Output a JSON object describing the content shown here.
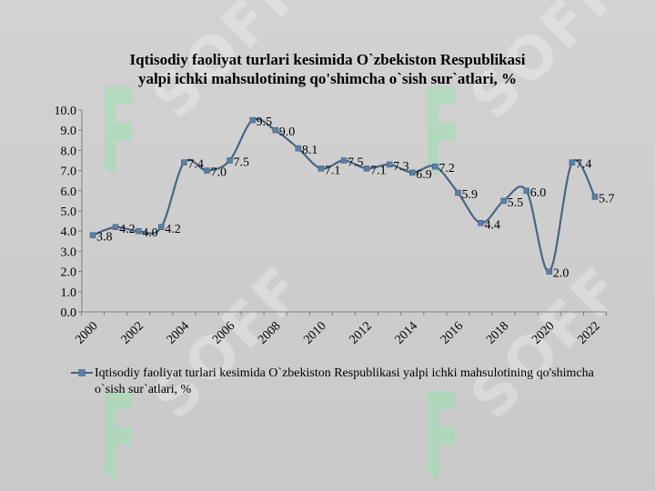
{
  "chart_data": {
    "type": "line",
    "title_line1": "Iqtisodiy faoliyat turlari kesimida O`zbekiston Respublikasi",
    "title_line2": "yalpi ichki mahsulotining qo'shimcha o`sish sur`atlari, %",
    "x": [
      2000,
      2001,
      2002,
      2003,
      2004,
      2005,
      2006,
      2007,
      2008,
      2009,
      2010,
      2011,
      2012,
      2013,
      2014,
      2015,
      2016,
      2017,
      2018,
      2019,
      2020,
      2021,
      2022
    ],
    "x_tick_labels": [
      "2000",
      "2002",
      "2004",
      "2006",
      "2008",
      "2010",
      "2012",
      "2014",
      "2016",
      "2018",
      "2020",
      "2022"
    ],
    "series": [
      {
        "name": "Iqtisodiy faoliyat turlari kesimida O`zbekiston Respublikasi yalpi ichki mahsulotining qo'shimcha o`sish sur`atlari, %",
        "values": [
          3.8,
          4.2,
          4.0,
          4.2,
          7.4,
          7.0,
          7.5,
          9.5,
          9.0,
          8.1,
          7.1,
          7.5,
          7.1,
          7.3,
          6.9,
          7.2,
          5.9,
          4.4,
          5.5,
          6.0,
          2.0,
          7.4,
          5.7
        ],
        "labels": [
          "3.8",
          "4.2",
          "4.0",
          "4.2",
          "7.4",
          "7.0",
          "7.5",
          "9.5",
          "9.0",
          "8.1",
          "7.1",
          "7.5",
          "7.1",
          "7.3",
          "6.9",
          "7.2",
          "5.9",
          "4.4",
          "5.5",
          "6.0",
          "2.0",
          "7.4",
          "5.7"
        ]
      }
    ],
    "y_tick_labels": [
      "0.0",
      "1.0",
      "2.0",
      "3.0",
      "4.0",
      "5.0",
      "6.0",
      "7.0",
      "8.0",
      "9.0",
      "10.0"
    ],
    "ylim": [
      0,
      10
    ],
    "line_color": "#4a6584",
    "marker_color": "#5b7fa6",
    "grid": false,
    "legend_position": "bottom"
  },
  "watermark": {
    "text": "SOFF",
    "color": "#ffffff",
    "logo_color": "#9be0b0"
  }
}
